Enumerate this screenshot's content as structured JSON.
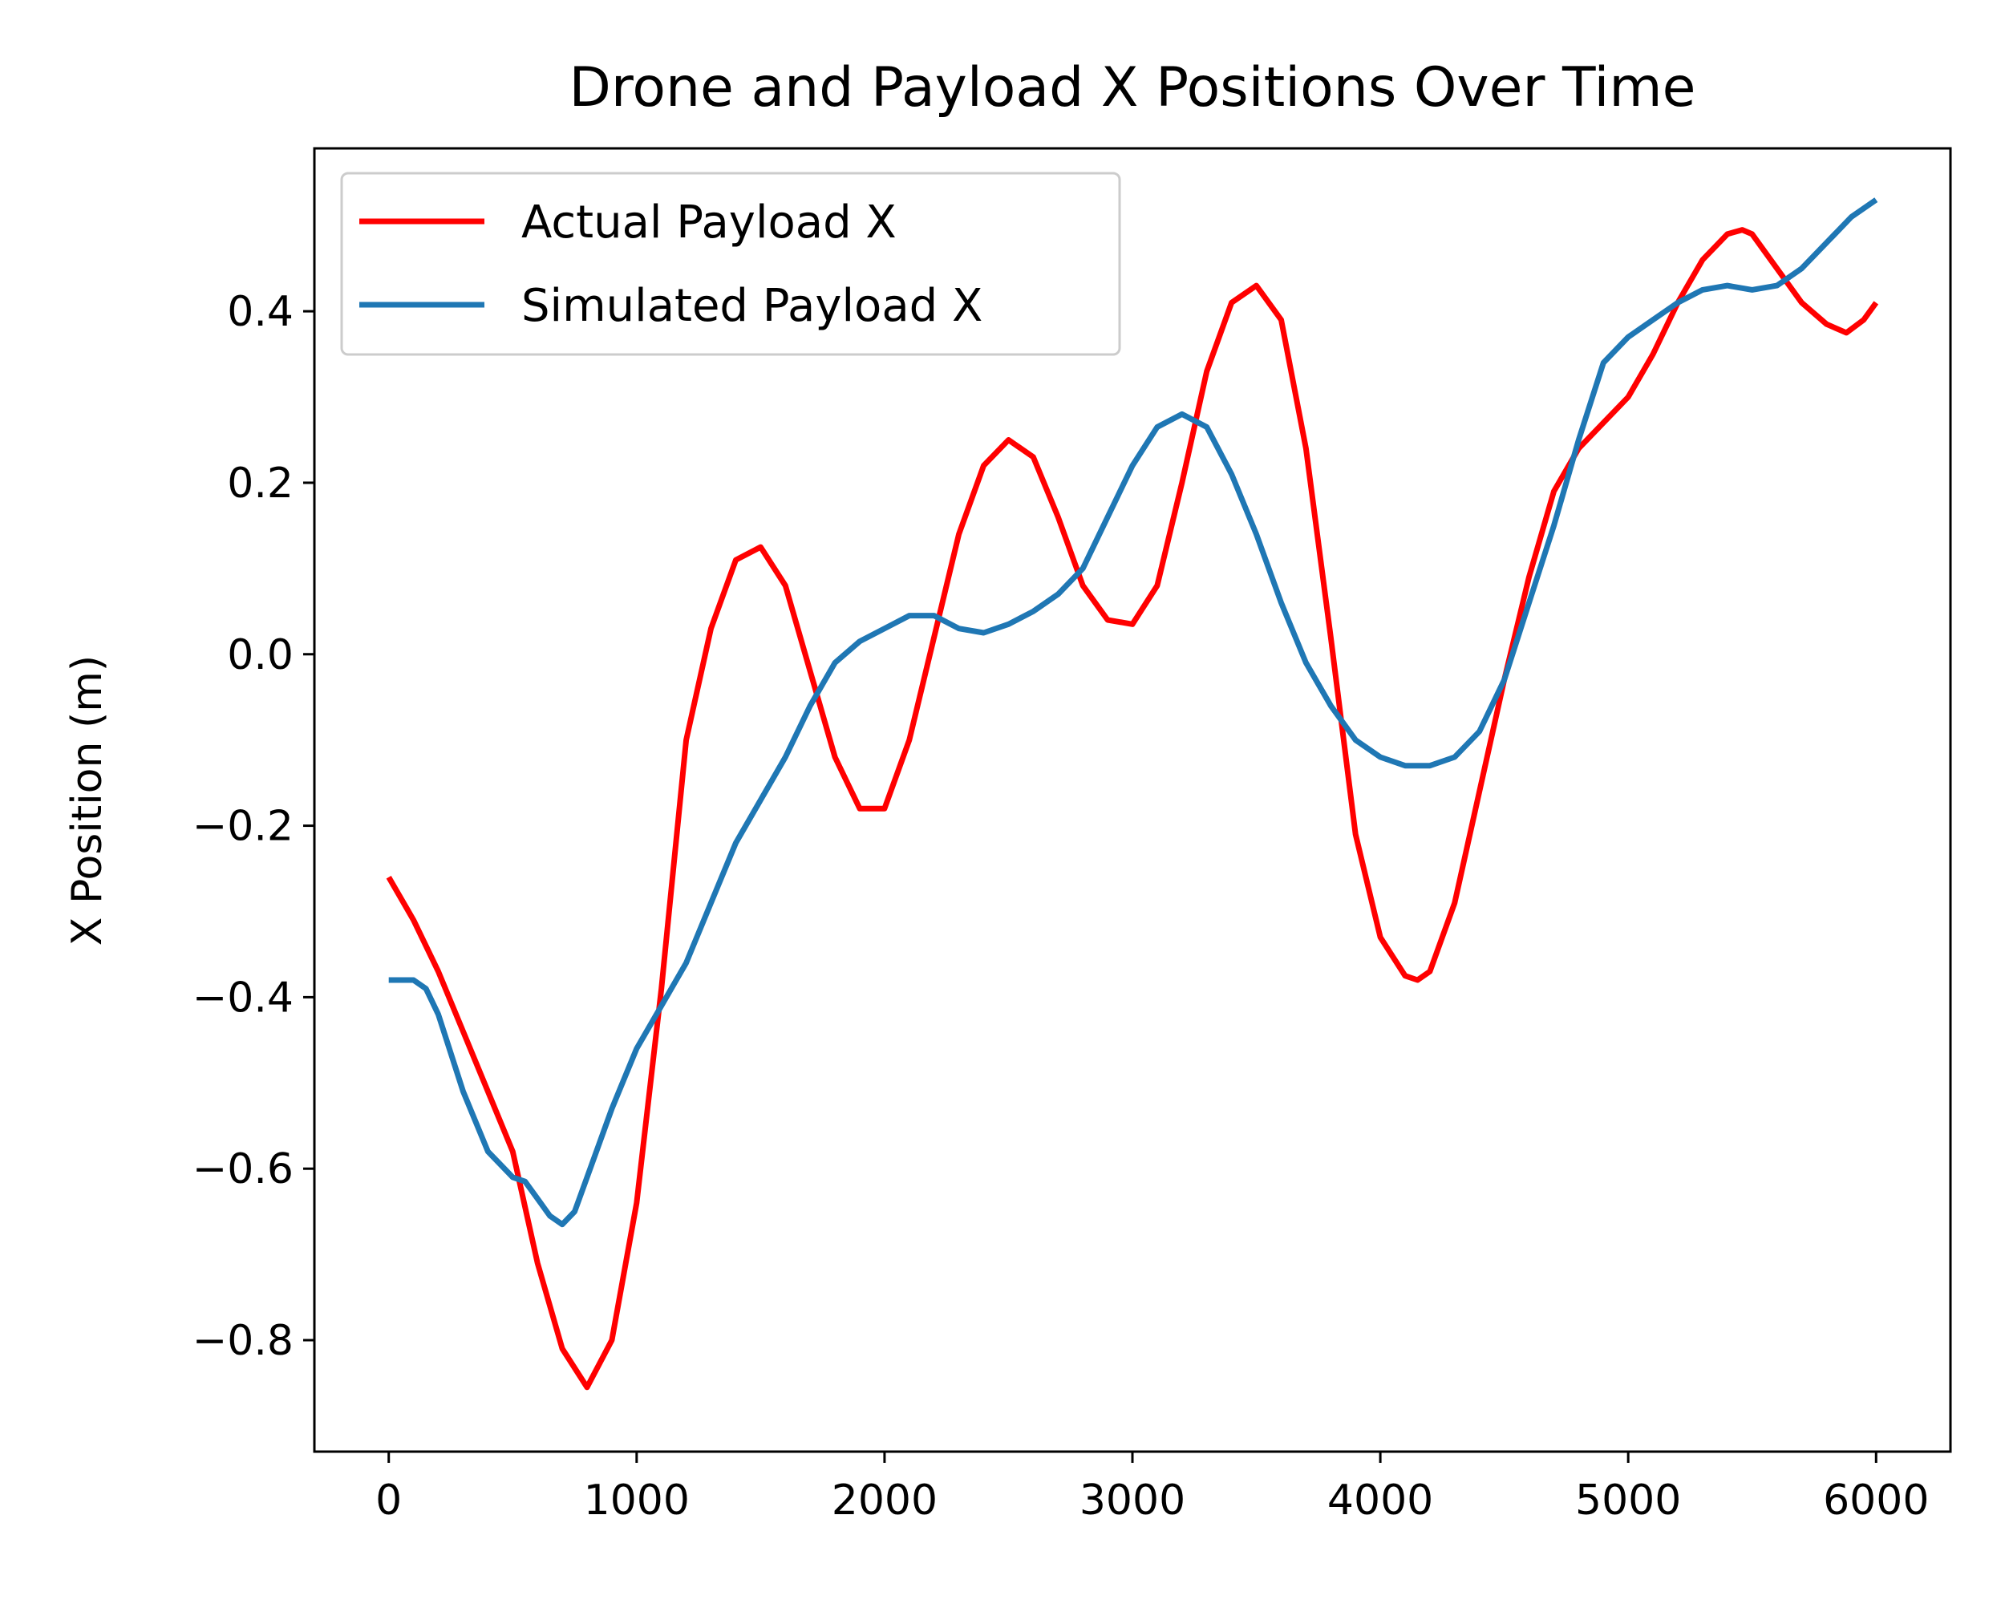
{
  "chart_data": {
    "type": "line",
    "title": "Drone and Payload X Positions Over Time",
    "xlabel": "",
    "ylabel": "X Position (m)",
    "xlim": [
      -300,
      6300
    ],
    "ylim": [
      -0.93,
      0.59
    ],
    "xticks": [
      0,
      1000,
      2000,
      3000,
      4000,
      5000,
      6000
    ],
    "xtick_labels": [
      "0",
      "1000",
      "2000",
      "3000",
      "4000",
      "5000",
      "6000"
    ],
    "yticks": [
      -0.8,
      -0.6,
      -0.4,
      -0.2,
      0.0,
      0.2,
      0.4
    ],
    "ytick_labels": [
      "−0.8",
      "−0.6",
      "−0.4",
      "−0.2",
      "0.0",
      "0.2",
      "0.4"
    ],
    "grid": false,
    "legend_position": "top-left",
    "series": [
      {
        "name": "Actual Payload X",
        "color": "#ff0000",
        "x": [
          0,
          100,
          200,
          300,
          400,
          500,
          600,
          700,
          800,
          900,
          1000,
          1100,
          1200,
          1300,
          1400,
          1500,
          1600,
          1700,
          1800,
          1900,
          2000,
          2100,
          2200,
          2300,
          2400,
          2500,
          2600,
          2700,
          2800,
          2900,
          3000,
          3100,
          3200,
          3300,
          3400,
          3500,
          3600,
          3700,
          3800,
          3900,
          4000,
          4100,
          4150,
          4200,
          4300,
          4400,
          4500,
          4600,
          4700,
          4800,
          4900,
          5000,
          5100,
          5200,
          5300,
          5400,
          5460,
          5500,
          5600,
          5700,
          5800,
          5880,
          5950,
          6000
        ],
        "y": [
          -0.26,
          -0.31,
          -0.37,
          -0.44,
          -0.51,
          -0.58,
          -0.71,
          -0.81,
          -0.855,
          -0.8,
          -0.64,
          -0.39,
          -0.1,
          0.03,
          0.11,
          0.125,
          0.08,
          -0.02,
          -0.12,
          -0.18,
          -0.18,
          -0.1,
          0.02,
          0.14,
          0.22,
          0.25,
          0.23,
          0.16,
          0.08,
          0.04,
          0.035,
          0.08,
          0.2,
          0.33,
          0.41,
          0.43,
          0.39,
          0.24,
          0.02,
          -0.21,
          -0.33,
          -0.375,
          -0.38,
          -0.37,
          -0.29,
          -0.16,
          -0.03,
          0.09,
          0.19,
          0.24,
          0.27,
          0.3,
          0.35,
          0.41,
          0.46,
          0.49,
          0.495,
          0.49,
          0.45,
          0.41,
          0.385,
          0.375,
          0.39,
          0.41
        ]
      },
      {
        "name": "Simulated Payload X",
        "color": "#1f77b4",
        "x": [
          0,
          100,
          150,
          200,
          300,
          400,
          500,
          550,
          600,
          650,
          700,
          750,
          800,
          900,
          1000,
          1100,
          1200,
          1300,
          1400,
          1500,
          1600,
          1700,
          1800,
          1900,
          2000,
          2100,
          2200,
          2300,
          2400,
          2500,
          2600,
          2700,
          2800,
          2900,
          3000,
          3100,
          3200,
          3300,
          3400,
          3500,
          3600,
          3700,
          3800,
          3900,
          4000,
          4100,
          4200,
          4300,
          4400,
          4500,
          4600,
          4700,
          4800,
          4900,
          5000,
          5100,
          5200,
          5300,
          5400,
          5500,
          5600,
          5700,
          5800,
          5900,
          6000
        ],
        "y": [
          -0.38,
          -0.38,
          -0.39,
          -0.42,
          -0.51,
          -0.58,
          -0.61,
          -0.615,
          -0.635,
          -0.655,
          -0.665,
          -0.65,
          -0.61,
          -0.53,
          -0.46,
          -0.41,
          -0.36,
          -0.29,
          -0.22,
          -0.17,
          -0.12,
          -0.06,
          -0.01,
          0.015,
          0.03,
          0.045,
          0.045,
          0.03,
          0.025,
          0.035,
          0.05,
          0.07,
          0.1,
          0.16,
          0.22,
          0.265,
          0.28,
          0.265,
          0.21,
          0.14,
          0.06,
          -0.01,
          -0.06,
          -0.1,
          -0.12,
          -0.13,
          -0.13,
          -0.12,
          -0.09,
          -0.03,
          0.06,
          0.15,
          0.25,
          0.34,
          0.37,
          0.39,
          0.41,
          0.425,
          0.43,
          0.425,
          0.43,
          0.45,
          0.48,
          0.51,
          0.53
        ]
      }
    ]
  }
}
